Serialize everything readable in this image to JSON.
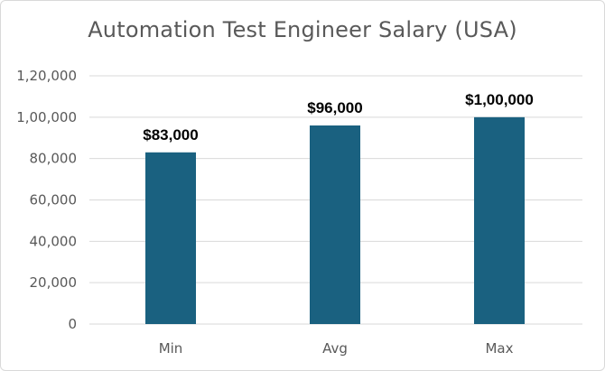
{
  "chart_data": {
    "type": "bar",
    "title": "Automation Test Engineer Salary (USA)",
    "categories": [
      "Min",
      "Avg",
      "Max"
    ],
    "values": [
      83000,
      96000,
      100000
    ],
    "data_labels": [
      "$83,000",
      "$96,000",
      "$1,00,000"
    ],
    "ylim": [
      0,
      120000
    ],
    "y_ticks": [
      0,
      20000,
      40000,
      60000,
      80000,
      100000,
      120000
    ],
    "y_tick_labels": [
      "0",
      "20,000",
      "40,000",
      "60,000",
      "80,000",
      "1,00,000",
      "1,20,000"
    ],
    "xlabel": "",
    "ylabel": "",
    "grid": true,
    "legend": "none",
    "bar_color": "#1a6180",
    "grid_color": "#d9d9d9"
  }
}
